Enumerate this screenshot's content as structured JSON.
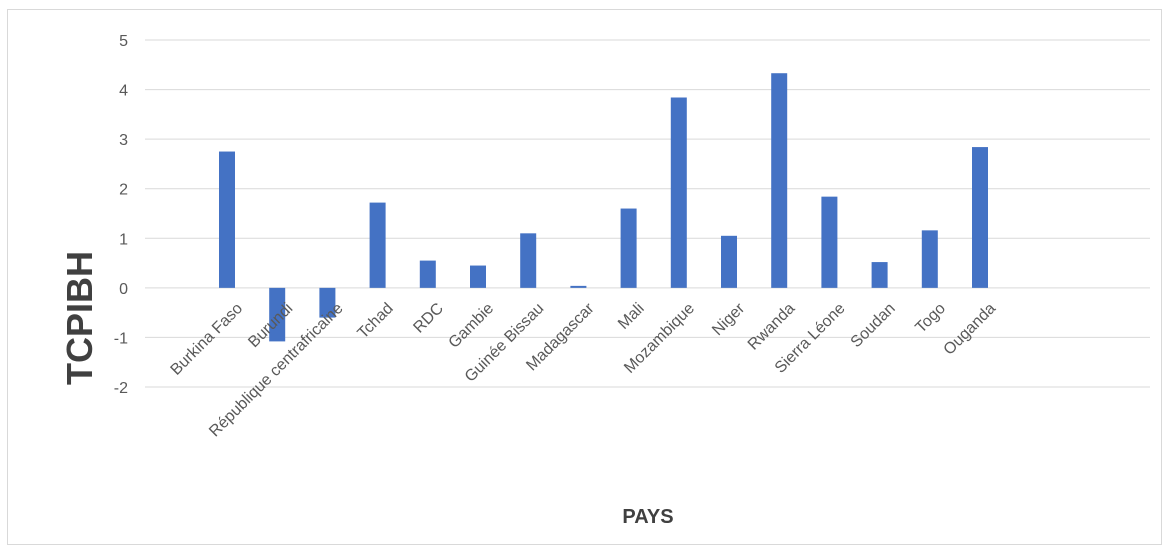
{
  "chart_data": {
    "type": "bar",
    "title": "",
    "xlabel": "PAYS",
    "ylabel": "TCPIBH",
    "ylim": [
      -2,
      5
    ],
    "yticks": [
      -2,
      -1,
      0,
      1,
      2,
      3,
      4,
      5
    ],
    "grid": true,
    "legend": "none",
    "bar_color": "#4472c4",
    "categories": [
      "Burkina Faso",
      "Burundi",
      "République centrafricaine",
      "Tchad",
      "RDC",
      "Gambie",
      "Guinée Bissau",
      "Madagascar",
      "Mali",
      "Mozambique",
      "Niger",
      "Rwanda",
      "Sierra Léone",
      "Soudan",
      "Togo",
      "Ouganda"
    ],
    "values": [
      2.75,
      -1.08,
      -0.6,
      1.72,
      0.55,
      0.45,
      1.1,
      0.04,
      1.6,
      3.84,
      1.05,
      4.33,
      1.84,
      0.52,
      1.16,
      2.84
    ]
  }
}
